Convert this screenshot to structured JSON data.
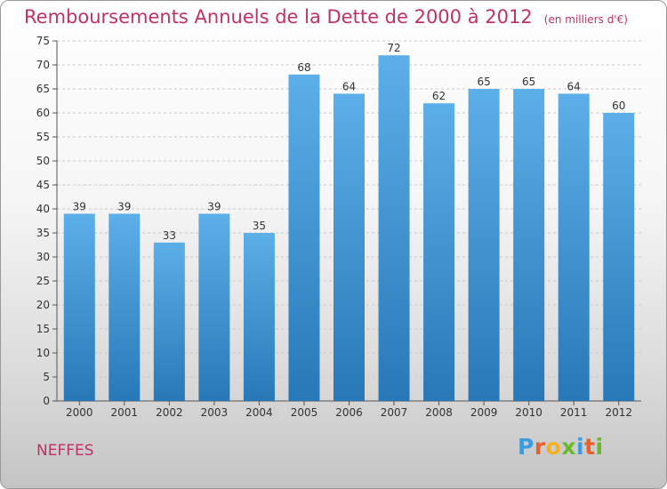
{
  "header": {
    "title": "Remboursements Annuels de la Dette de 2000 à 2012",
    "unit": "(en milliers d'€)"
  },
  "footer": {
    "commune": "NEFFES",
    "logo_letters": [
      "P",
      "r",
      "o",
      "x",
      "i",
      "t",
      "i"
    ],
    "logo_colors": [
      "#3d9be0",
      "#e8612c",
      "#f2b21d",
      "#6ab82e",
      "#3d9be0",
      "#e8612c",
      "#6ab82e"
    ]
  },
  "colors": {
    "title": "#c0306a",
    "bar_top": "#5cafe8",
    "bar_bottom": "#2878b8",
    "grid": "#c8c8c8"
  },
  "chart_data": {
    "type": "bar",
    "title": "Remboursements Annuels de la Dette de 2000 à 2012",
    "subtitle": "(en milliers d'€)",
    "xlabel": "",
    "ylabel": "",
    "categories": [
      "2000",
      "2001",
      "2002",
      "2003",
      "2004",
      "2005",
      "2006",
      "2007",
      "2008",
      "2009",
      "2010",
      "2011",
      "2012"
    ],
    "values": [
      39,
      39,
      33,
      39,
      35,
      68,
      64,
      72,
      62,
      65,
      65,
      64,
      60
    ],
    "ylim": [
      0,
      75
    ],
    "yticks": [
      0,
      5,
      10,
      15,
      20,
      25,
      30,
      35,
      40,
      45,
      50,
      55,
      60,
      65,
      70,
      75
    ],
    "grid": "horizontal dashed",
    "legend": "none"
  }
}
